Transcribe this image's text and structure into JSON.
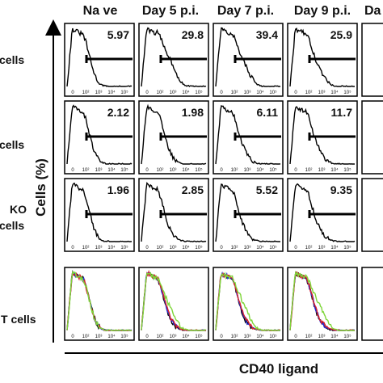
{
  "chart_data": {
    "type": "histogram-grid",
    "columns": [
      "Na ve",
      "Day 5 p.i.",
      "Day 7 p.i.",
      "Day 9 p.i.",
      "Da"
    ],
    "rows": [
      {
        "label": "cells",
        "percentages": [
          "5.97",
          "29.8",
          "39.4",
          "25.9"
        ]
      },
      {
        "label": "cells",
        "percentages": [
          "2.12",
          "1.98",
          "6.11",
          "11.7"
        ]
      },
      {
        "label_lines": [
          "KO",
          "cells"
        ],
        "percentages": [
          "1.96",
          "2.85",
          "5.52",
          "9.35"
        ]
      },
      {
        "label": "T cells",
        "overlay": true,
        "overlay_colors": [
          "#000000",
          "#1f2bd6",
          "#d61f2b",
          "#7fd63a"
        ]
      }
    ],
    "x_ticks": [
      "0",
      "10²",
      "10³",
      "10⁴",
      "10⁵"
    ],
    "xlabel": "CD40 ligand",
    "ylabel": "Cells (%)",
    "colors": {
      "line": "#000000",
      "blue": "#1f2bd6",
      "red": "#d61f2b",
      "green": "#7fd63a"
    }
  }
}
